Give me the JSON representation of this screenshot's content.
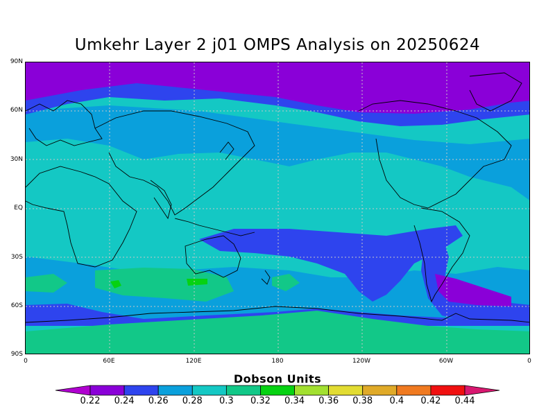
{
  "title": "Umkehr Layer 2 j01 OMPS Analysis on 20250624",
  "y_ticks": [
    "90N",
    "60N",
    "30N",
    "EQ",
    "30S",
    "60S",
    "90S"
  ],
  "x_ticks": [
    "0",
    "60E",
    "120E",
    "180",
    "120W",
    "60W",
    "0"
  ],
  "colorbar": {
    "title": "Dobson Units",
    "labels": [
      "0.22",
      "0.24",
      "0.26",
      "0.28",
      "0.3",
      "0.32",
      "0.34",
      "0.36",
      "0.38",
      "0.4",
      "0.42",
      "0.44"
    ],
    "colors": [
      "#b000d0",
      "#8a00d8",
      "#2e44ee",
      "#0aa0dc",
      "#14c8c4",
      "#12c888",
      "#06d212",
      "#a2e030",
      "#e2dc32",
      "#e0aa28",
      "#f07a20",
      "#f01010",
      "#d81870"
    ]
  },
  "map_colors": {
    "purple": "#8a00d8",
    "blue": "#2e44ee",
    "light_blue": "#0aa0dc",
    "teal": "#14c8c4",
    "green": "#12c888",
    "bright_green": "#06d212"
  }
}
